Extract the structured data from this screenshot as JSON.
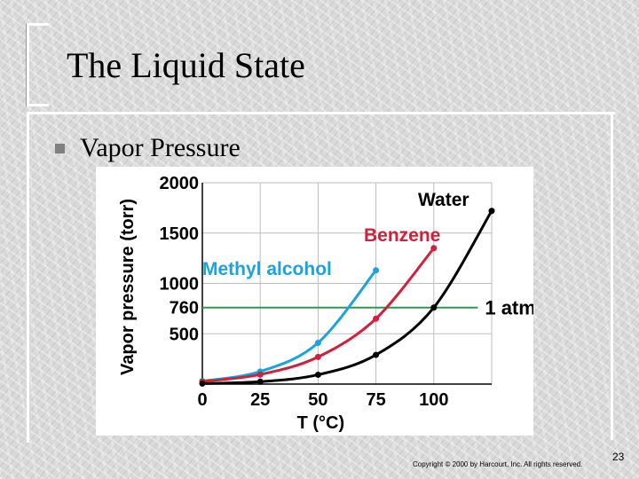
{
  "slide": {
    "title": "The Liquid State",
    "bullet": "Vapor Pressure",
    "slide_number": "23",
    "copyright": "Copyright © 2000 by Harcourt, Inc. All rights reserved."
  },
  "chart_data": {
    "type": "line",
    "title": "",
    "xlabel": "T (°C)",
    "ylabel": "Vapor pressure (torr)",
    "xlim": [
      0,
      125
    ],
    "ylim": [
      0,
      2000
    ],
    "x_ticks": [
      "0",
      "25",
      "50",
      "75",
      "100"
    ],
    "y_ticks": [
      "500",
      "760",
      "1000",
      "1500",
      "2000"
    ],
    "grid": true,
    "series": [
      {
        "name": "Methyl alcohol",
        "color": "#1ba3dd",
        "x": [
          0,
          25,
          50,
          75
        ],
        "y": [
          30,
          125,
          410,
          1130
        ]
      },
      {
        "name": "Benzene",
        "color": "#d41f3a",
        "x": [
          0,
          25,
          50,
          75,
          100
        ],
        "y": [
          25,
          95,
          270,
          650,
          1350
        ]
      },
      {
        "name": "Water",
        "color": "#000000",
        "x": [
          0,
          25,
          50,
          75,
          100,
          125
        ],
        "y": [
          5,
          24,
          93,
          290,
          760,
          1720
        ]
      }
    ],
    "reference_line": {
      "label": "1 atm",
      "y": 760,
      "color": "#2e9a4a"
    }
  }
}
